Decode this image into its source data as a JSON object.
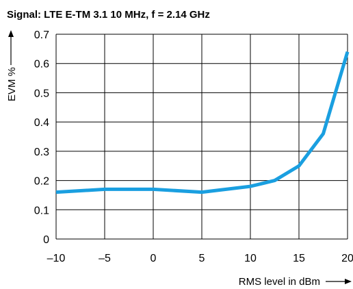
{
  "chart_data": {
    "type": "line",
    "title": "Signal: LTE E-TM 3.1 10 MHz, f = 2.14 GHz",
    "xlabel": "RMS level in dBm",
    "ylabel": "EVM %",
    "xlim": [
      -10,
      20
    ],
    "ylim": [
      0,
      0.7
    ],
    "x_ticks": [
      "–10",
      "–5",
      "0",
      "5",
      "10",
      "15",
      "20"
    ],
    "y_ticks": [
      "0",
      "0.1",
      "0.2",
      "0.3",
      "0.4",
      "0.5",
      "0.6",
      "0.7"
    ],
    "x_tick_values": [
      -10,
      -5,
      0,
      5,
      10,
      15,
      20
    ],
    "y_tick_values": [
      0,
      0.1,
      0.2,
      0.3,
      0.4,
      0.5,
      0.6,
      0.7
    ],
    "grid": true,
    "series": [
      {
        "color": "#1a9fe0",
        "x": [
          -10,
          -5,
          0,
          5,
          10,
          12.5,
          15,
          17.5,
          20
        ],
        "y": [
          0.16,
          0.17,
          0.17,
          0.16,
          0.18,
          0.2,
          0.25,
          0.36,
          0.64
        ]
      }
    ]
  }
}
